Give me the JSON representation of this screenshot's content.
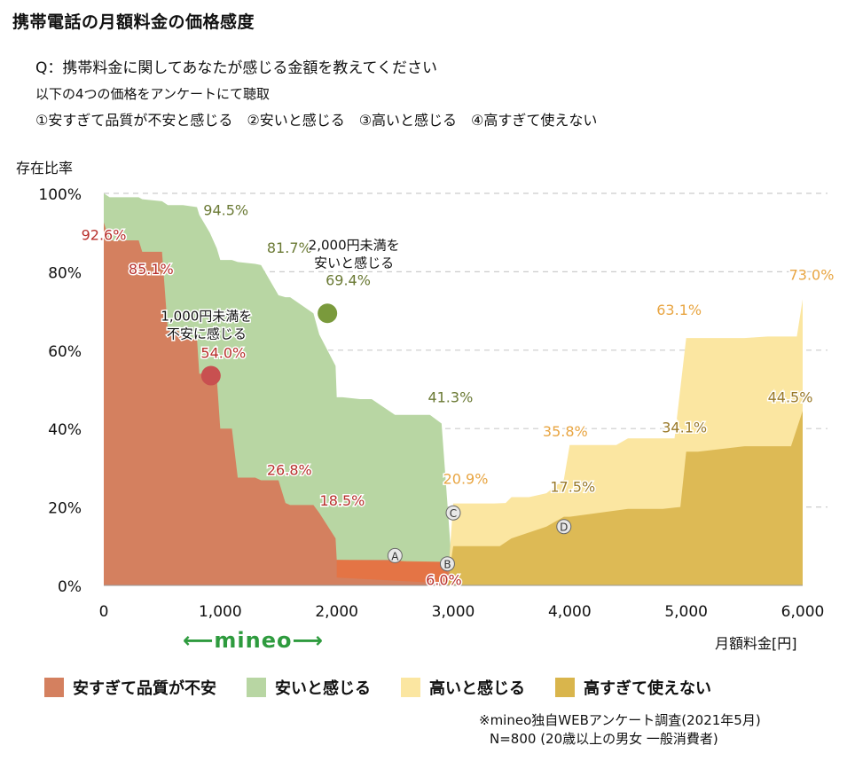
{
  "title": "携帯電話の月額料金の価格感度",
  "question": "Q：携帯料金に関してあなたが感じる金額を教えてください",
  "subtitle": "以下の4つの価格をアンケートにて聴取",
  "options": "①安すぎて品質が不安と感じる　②安いと感じる　③高いと感じる　④高すぎて使えない",
  "brand": "mineo",
  "source_line1": "※mineo独自WEBアンケート調査(2021年5月)",
  "source_line2": "N=800 (20歳以上の男女 一般消費者)",
  "colors": {
    "too_cheap": "#d4805f",
    "cheap": "#b8d6a3",
    "expensive": "#fbe6a1",
    "too_expensive": "#d9b54c",
    "grid": "#cccccc",
    "mineo_green": "#2e9b3e"
  },
  "chart_data": {
    "type": "area",
    "title": "携帯電話の月額料金の価格感度",
    "xlabel": "月額料金[円]",
    "ylabel": "存在比率",
    "xlim": [
      0,
      6000
    ],
    "ylim": [
      0,
      100
    ],
    "x_ticks": [
      "0",
      "1,000",
      "2,000",
      "3,000",
      "4,000",
      "5,000",
      "6,000"
    ],
    "y_ticks": [
      "0%",
      "20%",
      "40%",
      "60%",
      "80%",
      "100%"
    ],
    "grid": "horizontal dashed",
    "legend_position": "bottom",
    "series": [
      {
        "name": "安すぎて品質が不安",
        "color": "#d4805f",
        "x": [
          0,
          50,
          300,
          330,
          500,
          550,
          640,
          680,
          800,
          820,
          910,
          970,
          1000,
          1100,
          1150,
          1300,
          1350,
          1500,
          1560,
          1600,
          1800,
          1850,
          1990,
          2000,
          2050,
          2200,
          2300,
          2500,
          2600,
          2700,
          2800,
          2900,
          2950,
          3000,
          6000
        ],
        "y": [
          92.6,
          88,
          88,
          85.1,
          85.1,
          65,
          65,
          63,
          63,
          54,
          54,
          53,
          40,
          40,
          27.5,
          27.5,
          26.8,
          26.8,
          21,
          20.5,
          20.5,
          18.5,
          12,
          6.5,
          6.5,
          6.5,
          6.5,
          6.5,
          6,
          6,
          6,
          6,
          6,
          0,
          0
        ]
      },
      {
        "name": "安いと感じる",
        "color": "#b8d6a3",
        "x": [
          0,
          50,
          300,
          330,
          500,
          550,
          640,
          680,
          800,
          820,
          910,
          970,
          1000,
          1100,
          1150,
          1300,
          1350,
          1500,
          1560,
          1600,
          1800,
          1850,
          1990,
          2000,
          2050,
          2200,
          2300,
          2500,
          2600,
          2700,
          2800,
          2900,
          2950,
          3000,
          6000
        ],
        "y": [
          100,
          99,
          99,
          98.5,
          98,
          97,
          97,
          97,
          96.5,
          94.5,
          90,
          86,
          83,
          83,
          82.5,
          82,
          81.7,
          74,
          73.5,
          73.5,
          69.4,
          64,
          56,
          48,
          48,
          47.5,
          47.5,
          43.5,
          43.5,
          43.5,
          43.5,
          41.3,
          20.9,
          0,
          0
        ]
      },
      {
        "name": "高いと感じる",
        "color": "#fbe6a1",
        "x": [
          0,
          2950,
          3000,
          3350,
          3450,
          3500,
          3650,
          3800,
          3950,
          4000,
          4400,
          4500,
          4700,
          4800,
          4900,
          5000,
          5100,
          5500,
          5700,
          5950,
          6000
        ],
        "y": [
          0,
          0,
          20.9,
          20.9,
          21,
          22.5,
          22.5,
          23.5,
          27,
          35.8,
          35.8,
          37.5,
          37.5,
          37.5,
          37.5,
          63.1,
          63.1,
          63.1,
          63.5,
          63.5,
          73.0
        ]
      },
      {
        "name": "高すぎて使えない",
        "color": "#d9b54c",
        "x": [
          0,
          2950,
          3000,
          3350,
          3400,
          3500,
          3800,
          3950,
          4000,
          4500,
          4600,
          4800,
          4950,
          5000,
          5100,
          5500,
          5900,
          6000
        ],
        "y": [
          0,
          0,
          10,
          10,
          10,
          12,
          15,
          17.5,
          17.5,
          19.5,
          19.5,
          19.5,
          20,
          34.1,
          34.1,
          35.5,
          35.5,
          44.5
        ]
      }
    ],
    "data_labels": [
      {
        "text": "92.6%",
        "x": 0,
        "y": 92.6,
        "series": "安すぎて品質が不安"
      },
      {
        "text": "85.1%",
        "x": 330,
        "y": 85.1,
        "series": "安すぎて品質が不安"
      },
      {
        "text": "54.0%",
        "x": 920,
        "y": 54.0,
        "series": "安すぎて品質が不安"
      },
      {
        "text": "26.8%",
        "x": 1350,
        "y": 26.8,
        "series": "安すぎて品質が不安"
      },
      {
        "text": "18.5%",
        "x": 1850,
        "y": 18.5,
        "series": "安すぎて品質が不安"
      },
      {
        "text": "6.0%",
        "x": 2950,
        "y": 6.0,
        "series": "安すぎて品質が不安"
      },
      {
        "text": "94.5%",
        "x": 820,
        "y": 94.5,
        "series": "安いと感じる"
      },
      {
        "text": "81.7%",
        "x": 1350,
        "y": 81.7,
        "series": "安いと感じる"
      },
      {
        "text": "69.4%",
        "x": 1900,
        "y": 69.4,
        "series": "安いと感じる"
      },
      {
        "text": "41.3%",
        "x": 2900,
        "y": 41.3,
        "series": "安いと感じる"
      },
      {
        "text": "20.9%",
        "x": 3000,
        "y": 20.9,
        "series": "高いと感じる"
      },
      {
        "text": "35.8%",
        "x": 4000,
        "y": 35.8,
        "series": "高いと感じる"
      },
      {
        "text": "63.1%",
        "x": 5000,
        "y": 63.1,
        "series": "高いと感じる"
      },
      {
        "text": "73.0%",
        "x": 6000,
        "y": 73.0,
        "series": "高いと感じる"
      },
      {
        "text": "17.5%",
        "x": 3950,
        "y": 17.5,
        "series": "高すぎて使えない"
      },
      {
        "text": "34.1%",
        "x": 5000,
        "y": 34.1,
        "series": "高すぎて使えない"
      },
      {
        "text": "44.5%",
        "x": 6000,
        "y": 44.5,
        "series": "高すぎて使えない"
      }
    ],
    "markers": [
      {
        "label": "A",
        "x": 2500,
        "y": 7.6
      },
      {
        "label": "B",
        "x": 2950,
        "y": 5.5
      },
      {
        "label": "C",
        "x": 3000,
        "y": 18.5
      },
      {
        "label": "D",
        "x": 3950,
        "y": 15
      }
    ],
    "highlights": [
      {
        "x": 920,
        "y": 53.5,
        "color": "#c85050",
        "note_line1": "1,000円未満を",
        "note_line2": "不安に感じる"
      },
      {
        "x": 1920,
        "y": 69.4,
        "color": "#7a9a3c",
        "note_line1": "2,000円未満を",
        "note_line2": "安いと感じる"
      }
    ]
  }
}
